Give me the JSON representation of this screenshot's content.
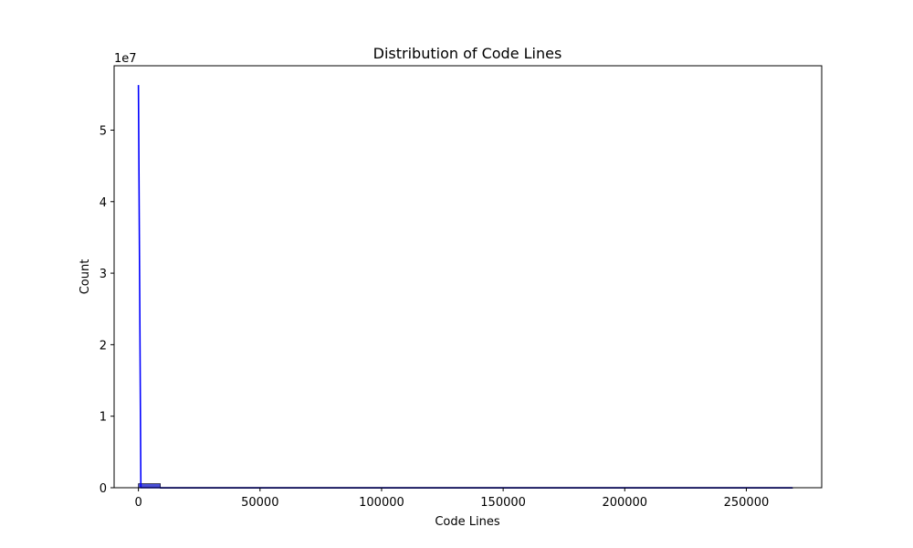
{
  "chart_data": {
    "type": "bar",
    "title": "Distribution of Code Lines",
    "xlabel": "Code Lines",
    "ylabel": "Count",
    "y_offset_text": "1e7",
    "xlim": [
      -10000,
      281000
    ],
    "ylim": [
      0,
      59000000
    ],
    "xticks": [
      0,
      50000,
      100000,
      150000,
      200000,
      250000
    ],
    "xtick_labels": [
      "0",
      "50000",
      "100000",
      "150000",
      "200000",
      "250000"
    ],
    "yticks": [
      0,
      10000000,
      20000000,
      30000000,
      40000000,
      50000000
    ],
    "ytick_labels": [
      "0",
      "1",
      "2",
      "3",
      "4",
      "5"
    ],
    "grid": false,
    "histogram": {
      "bin_edges": [
        0,
        9000,
        18000,
        27000,
        36000,
        45000,
        54000,
        63000,
        72000,
        81000,
        90000,
        99000,
        108000,
        117000,
        126000,
        135000,
        144000,
        153000,
        162000,
        171000,
        180000,
        189000,
        198000,
        207000,
        216000,
        225000,
        234000,
        243000,
        252000,
        261000,
        269000
      ],
      "counts": [
        560000,
        2000,
        500,
        200,
        100,
        50,
        30,
        20,
        10,
        10,
        5,
        5,
        5,
        3,
        3,
        2,
        2,
        2,
        1,
        1,
        1,
        1,
        1,
        1,
        1,
        1,
        1,
        1,
        1,
        1
      ],
      "fill_color": "#4a4fd6",
      "edge_color": "#1a1a3a"
    },
    "kde": {
      "color": "#0000ff",
      "x": [
        0,
        1000,
        3000,
        10000,
        50000,
        100000,
        150000,
        200000,
        250000,
        269000
      ],
      "y": [
        56300000,
        0,
        0,
        0,
        0,
        0,
        0,
        0,
        0,
        0
      ]
    }
  }
}
